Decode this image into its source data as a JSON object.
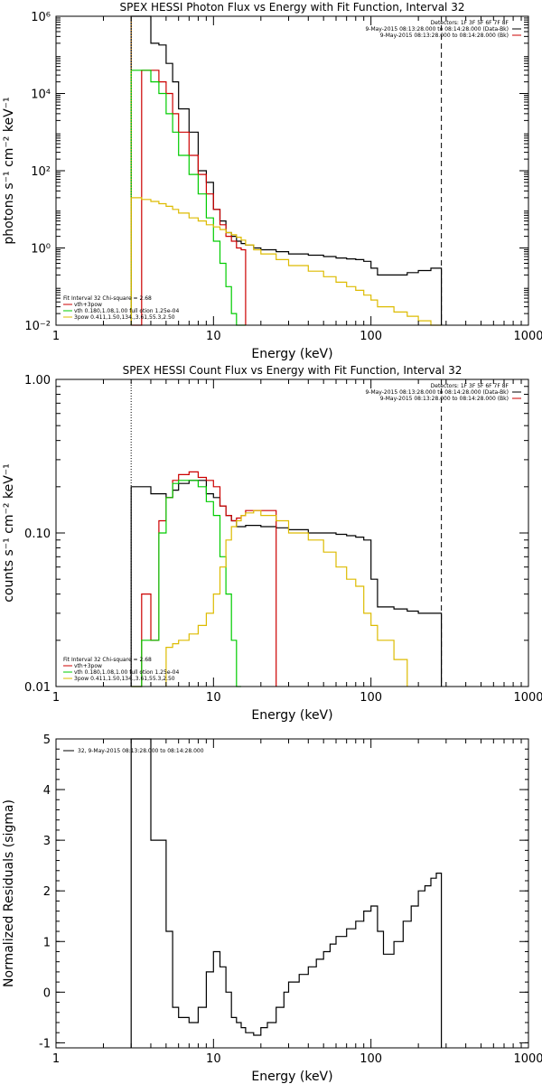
{
  "chart_data": [
    {
      "type": "line",
      "title": "SPEX HESSI Photon Flux vs Energy with Fit Function, Interval 32",
      "xlabel": "Energy (keV)",
      "ylabel": "photons s⁻¹ cm⁻² keV⁻¹",
      "xscale": "log",
      "yscale": "log",
      "xlim": [
        1,
        1000
      ],
      "ylim": [
        0.01,
        1000000
      ],
      "xticks": [
        {
          "v": 1,
          "label": "1"
        },
        {
          "v": 10,
          "label": "10"
        },
        {
          "v": 100,
          "label": "100"
        },
        {
          "v": 1000,
          "label": "1000"
        }
      ],
      "yticks": [
        {
          "v": 0.01,
          "label": "10⁻²"
        },
        {
          "v": 1,
          "label": "10⁰"
        },
        {
          "v": 100,
          "label": "10²"
        },
        {
          "v": 10000,
          "label": "10⁴"
        },
        {
          "v": 1000000,
          "label": "10⁶"
        }
      ],
      "legend_top": [
        "Detectors: 1F 3F 5F 6F 7F 8F",
        "9-May-2015 08:13:28.000 to 08:14:28.000 (Data-Bk)",
        "9-May-2015 08:13:28.000 to 08:14:28.000 (Bk)"
      ],
      "legend_top_colors": [
        "",
        "#000000",
        "#cc0000"
      ],
      "fit_text": "Fit Interval 32   Chi-square = 2.68",
      "legend_bottom": [
        "vth+3pow",
        "vth 0.180,1.08,1.00  full otion 1.25e-04",
        "3pow 0.411,1.50,134.,3.61,55.3,2.50"
      ],
      "legend_bottom_colors": [
        "#cc0000",
        "#00cc00",
        "#ddbb00"
      ],
      "vlines": [
        {
          "x": 3.0,
          "style": "dotted",
          "color": "#ff9900"
        },
        {
          "x": 280,
          "style": "dashed",
          "color": "#000000"
        }
      ],
      "series": [
        {
          "color": "#000000",
          "edges": [
            3.0,
            3.5,
            4.0,
            4.5,
            5.0,
            5.5,
            6.0,
            7.0,
            8.0,
            9.0,
            10.0,
            11.0,
            12.0,
            13.0,
            14.0,
            15.0,
            16.0,
            18.0,
            20.0,
            25.0,
            30.0,
            40.0,
            50.0,
            60.0,
            70.0,
            80.0,
            90.0,
            100.0,
            110.0,
            140.0,
            170.0,
            200.0,
            240.0,
            280.0
          ],
          "values": [
            1000000,
            1000000,
            200000,
            180000,
            60000,
            20000,
            4000,
            1000,
            100,
            50,
            10,
            5,
            2.5,
            2,
            1.5,
            1.3,
            1.2,
            1,
            0.9,
            0.8,
            0.7,
            0.65,
            0.6,
            0.55,
            0.52,
            0.5,
            0.45,
            0.3,
            0.2,
            0.2,
            0.23,
            0.26,
            0.3
          ]
        },
        {
          "color": "#cc0000",
          "edges": [
            3.0,
            3.5,
            4.0,
            4.5,
            5.0,
            5.5,
            6.0,
            7.0,
            8.0,
            9.0,
            10.0,
            11.0,
            12.0,
            13.0,
            14.0,
            15.0,
            16.0
          ],
          "values": [
            0,
            40000,
            40000,
            20000,
            10000,
            3000,
            1000,
            250,
            80,
            25,
            10,
            4,
            2,
            1.5,
            1.0,
            0.9
          ]
        },
        {
          "color": "#00cc00",
          "edges": [
            3.0,
            3.5,
            4.0,
            4.5,
            5.0,
            5.5,
            6.0,
            7.0,
            8.0,
            9.0,
            10.0,
            11.0,
            12.0,
            13.0,
            14.0,
            15.0,
            16.0
          ],
          "values": [
            40000,
            40000,
            20000,
            10000,
            3000,
            1000,
            250,
            80,
            25,
            6,
            1.5,
            0.4,
            0.1,
            0.02,
            0.01,
            0.005
          ]
        },
        {
          "color": "#ddbb00",
          "edges": [
            3.0,
            3.5,
            4.0,
            4.5,
            5.0,
            5.5,
            6.0,
            7.0,
            8.0,
            9.0,
            10.0,
            11.0,
            12.0,
            13.0,
            14.0,
            15.0,
            16.0,
            18.0,
            20.0,
            25.0,
            30.0,
            40.0,
            50.0,
            60.0,
            70.0,
            80.0,
            90.0,
            100.0,
            110.0,
            140.0,
            170.0,
            200.0,
            240.0,
            280.0
          ],
          "values": [
            20,
            18,
            16,
            14,
            12,
            10,
            8,
            6,
            5,
            4,
            3.5,
            3,
            2.5,
            2.2,
            1.9,
            1.6,
            1.2,
            0.9,
            0.7,
            0.5,
            0.35,
            0.25,
            0.18,
            0.13,
            0.1,
            0.08,
            0.06,
            0.045,
            0.03,
            0.022,
            0.017,
            0.013,
            0.01
          ]
        }
      ]
    },
    {
      "type": "line",
      "title": "SPEX HESSI Count Flux vs Energy with Fit Function, Interval 32",
      "xlabel": "Energy (keV)",
      "ylabel": "counts s⁻¹ cm⁻² keV⁻¹",
      "xscale": "log",
      "yscale": "log",
      "xlim": [
        1,
        1000
      ],
      "ylim": [
        0.01,
        1.0
      ],
      "xticks": [
        {
          "v": 1,
          "label": "1"
        },
        {
          "v": 10,
          "label": "10"
        },
        {
          "v": 100,
          "label": "100"
        },
        {
          "v": 1000,
          "label": "1000"
        }
      ],
      "yticks": [
        {
          "v": 0.01,
          "label": "0.01"
        },
        {
          "v": 0.1,
          "label": "0.10"
        },
        {
          "v": 1.0,
          "label": "1.00"
        }
      ],
      "legend_top": [
        "Detectors: 1F 3F 5F 6F 7F 8F",
        "9-May-2015 08:13:28.000 to 08:14:28.000 (Data-Bk)",
        "9-May-2015 08:13:28.000 to 08:14:28.000 (Bk)"
      ],
      "legend_top_colors": [
        "",
        "#000000",
        "#cc0000"
      ],
      "fit_text": "Fit Interval 32   Chi-square = 2.68",
      "legend_bottom": [
        "vth+3pow",
        "vth 0.180,1.08,1.00  full otion 1.25e-04",
        "3pow 0.411,1.50,134.,3.61,55.3,2.50"
      ],
      "legend_bottom_colors": [
        "#cc0000",
        "#00cc00",
        "#ddbb00"
      ],
      "vlines": [
        {
          "x": 3.0,
          "style": "dotted",
          "color": "#000000"
        },
        {
          "x": 280,
          "style": "dashed",
          "color": "#000000"
        }
      ],
      "series": [
        {
          "color": "#000000",
          "edges": [
            3.0,
            3.5,
            4.0,
            4.5,
            5.0,
            5.5,
            6.0,
            7.0,
            8.0,
            9.0,
            10.0,
            11.0,
            12.0,
            13.0,
            14.0,
            15.0,
            16.0,
            18.0,
            20.0,
            25.0,
            30.0,
            40.0,
            50.0,
            60.0,
            70.0,
            80.0,
            90.0,
            100.0,
            110.0,
            140.0,
            170.0,
            200.0,
            240.0,
            280.0
          ],
          "values": [
            0.2,
            0.2,
            0.18,
            0.18,
            0.17,
            0.19,
            0.21,
            0.22,
            0.22,
            0.18,
            0.17,
            0.15,
            0.13,
            0.12,
            0.11,
            0.11,
            0.112,
            0.112,
            0.11,
            0.108,
            0.105,
            0.1,
            0.1,
            0.098,
            0.096,
            0.094,
            0.09,
            0.05,
            0.033,
            0.032,
            0.031,
            0.03,
            0.03
          ]
        },
        {
          "color": "#cc0000",
          "edges": [
            3.0,
            3.5,
            4.0,
            4.5,
            5.0,
            5.5,
            6.0,
            7.0,
            8.0,
            9.0,
            10.0,
            11.0,
            12.0,
            13.0,
            14.0,
            15.0,
            16.0,
            18.0,
            20.0,
            25.0
          ],
          "values": [
            0,
            0.04,
            0.02,
            0.12,
            0.17,
            0.22,
            0.24,
            0.25,
            0.23,
            0.22,
            0.2,
            0.15,
            0.13,
            0.12,
            0.125,
            0.13,
            0.14,
            0.14,
            0.14
          ]
        },
        {
          "color": "#00cc00",
          "edges": [
            3.0,
            3.5,
            4.0,
            4.5,
            5.0,
            5.5,
            6.0,
            7.0,
            8.0,
            9.0,
            10.0,
            11.0,
            12.0,
            13.0,
            14.0,
            15.0
          ],
          "values": [
            0,
            0.02,
            0.02,
            0.1,
            0.17,
            0.21,
            0.22,
            0.22,
            0.2,
            0.16,
            0.13,
            0.07,
            0.04,
            0.02,
            0.01
          ]
        },
        {
          "color": "#ddbb00",
          "edges": [
            5.0,
            5.5,
            6.0,
            7.0,
            8.0,
            9.0,
            10.0,
            11.0,
            12.0,
            13.0,
            14.0,
            15.0,
            16.0,
            18.0,
            20.0,
            25.0,
            30.0,
            40.0,
            50.0,
            60.0,
            70.0,
            80.0,
            90.0,
            100.0,
            110.0,
            140.0,
            170.0
          ],
          "values": [
            0.018,
            0.019,
            0.02,
            0.022,
            0.025,
            0.03,
            0.04,
            0.06,
            0.09,
            0.11,
            0.12,
            0.13,
            0.135,
            0.14,
            0.13,
            0.12,
            0.1,
            0.09,
            0.075,
            0.06,
            0.05,
            0.045,
            0.03,
            0.025,
            0.02,
            0.015
          ]
        }
      ]
    },
    {
      "type": "line",
      "title": "",
      "xlabel": "Energy (keV)",
      "ylabel": "Normalized Residuals (sigma)",
      "xscale": "log",
      "yscale": "linear",
      "xlim": [
        1,
        1000
      ],
      "ylim": [
        -1.1,
        5.0
      ],
      "xticks": [
        {
          "v": 1,
          "label": "1"
        },
        {
          "v": 10,
          "label": "10"
        },
        {
          "v": 100,
          "label": "100"
        },
        {
          "v": 1000,
          "label": "1000"
        }
      ],
      "yticks": [
        {
          "v": -1,
          "label": "-1"
        },
        {
          "v": 0,
          "label": "0"
        },
        {
          "v": 1,
          "label": "1"
        },
        {
          "v": 2,
          "label": "2"
        },
        {
          "v": 3,
          "label": "3"
        },
        {
          "v": 4,
          "label": "4"
        },
        {
          "v": 5,
          "label": "5"
        }
      ],
      "legend_top": [
        "32,  9-May-2015 08:13:28.000 to 08:14:28.000"
      ],
      "legend_top_colors": [
        "#000000"
      ],
      "series": [
        {
          "color": "#000000",
          "edges": [
            3.0,
            3.5,
            4.0,
            4.5,
            5.0,
            5.5,
            6.0,
            7.0,
            8.0,
            9.0,
            10.0,
            11.0,
            12.0,
            13.0,
            14.0,
            15.0,
            16.0,
            18.0,
            20.0,
            22.0,
            25.0,
            28.0,
            30.0,
            35.0,
            40.0,
            45.0,
            50.0,
            55.0,
            60.0,
            70.0,
            80.0,
            90.0,
            100.0,
            110.0,
            120.0,
            140.0,
            160.0,
            180.0,
            200.0,
            220.0,
            240.0,
            260.0,
            280.0
          ],
          "values": [
            5.0,
            5.0,
            3.0,
            3.0,
            1.2,
            -0.3,
            -0.5,
            -0.6,
            -0.3,
            0.4,
            0.8,
            0.5,
            0.0,
            -0.5,
            -0.6,
            -0.7,
            -0.8,
            -0.85,
            -0.7,
            -0.6,
            -0.3,
            0.0,
            0.2,
            0.35,
            0.5,
            0.65,
            0.8,
            0.95,
            1.1,
            1.25,
            1.4,
            1.6,
            1.7,
            1.2,
            0.75,
            1.0,
            1.4,
            1.7,
            2.0,
            2.1,
            2.25,
            2.35
          ]
        }
      ]
    }
  ]
}
